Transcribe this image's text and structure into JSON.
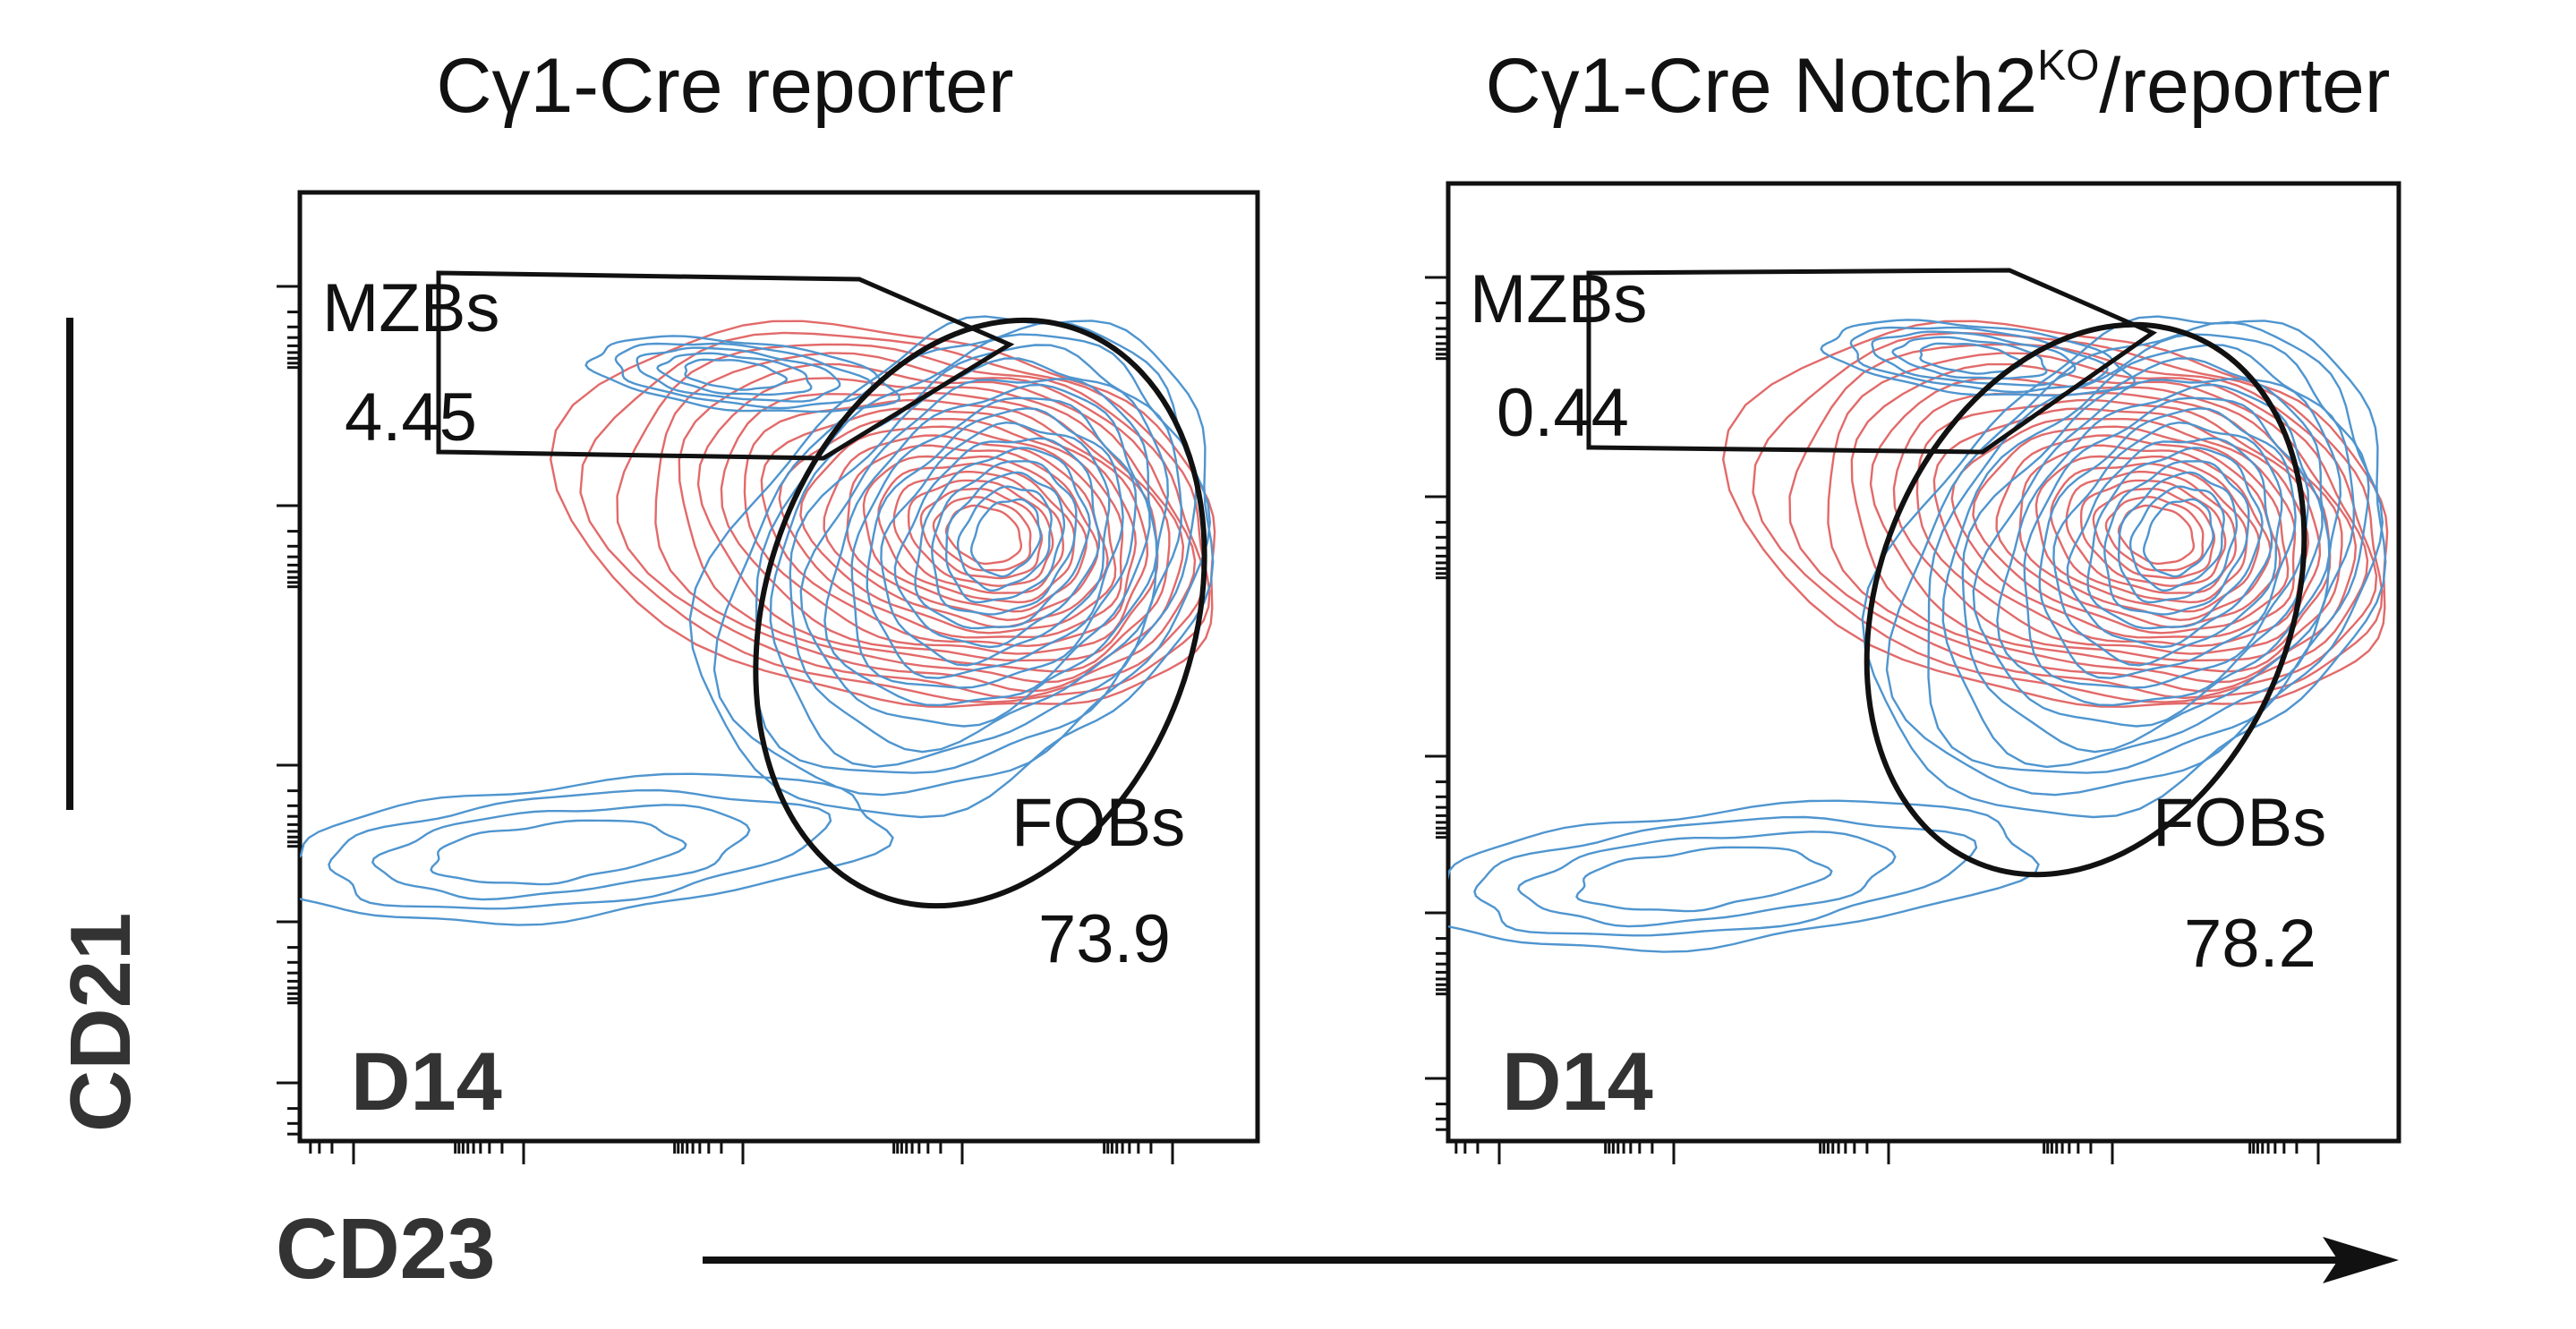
{
  "chart_data": [
    {
      "type": "contour",
      "title_main": "Cγ1-Cre reporter",
      "title_sup": "",
      "title_tail": "",
      "timepoint_label": "D14",
      "xlabel": "CD23",
      "ylabel": "CD21",
      "gates": [
        {
          "name": "MZBs",
          "value": "4.45"
        },
        {
          "name": "FOBs",
          "value": "73.9"
        }
      ],
      "contour_colors": {
        "series_a": "#e26a6a",
        "series_b": "#4f95cf"
      }
    },
    {
      "type": "contour",
      "title_main": "Cγ1-Cre Notch2",
      "title_sup": "KO",
      "title_tail": "/reporter",
      "timepoint_label": "D14",
      "xlabel": "CD23",
      "ylabel": "CD21",
      "gates": [
        {
          "name": "MZBs",
          "value": "0.44"
        },
        {
          "name": "FOBs",
          "value": "78.2"
        }
      ],
      "contour_colors": {
        "series_a": "#e26a6a",
        "series_b": "#4f95cf"
      }
    }
  ],
  "axes": {
    "xlabel": "CD23",
    "ylabel": "CD21"
  }
}
